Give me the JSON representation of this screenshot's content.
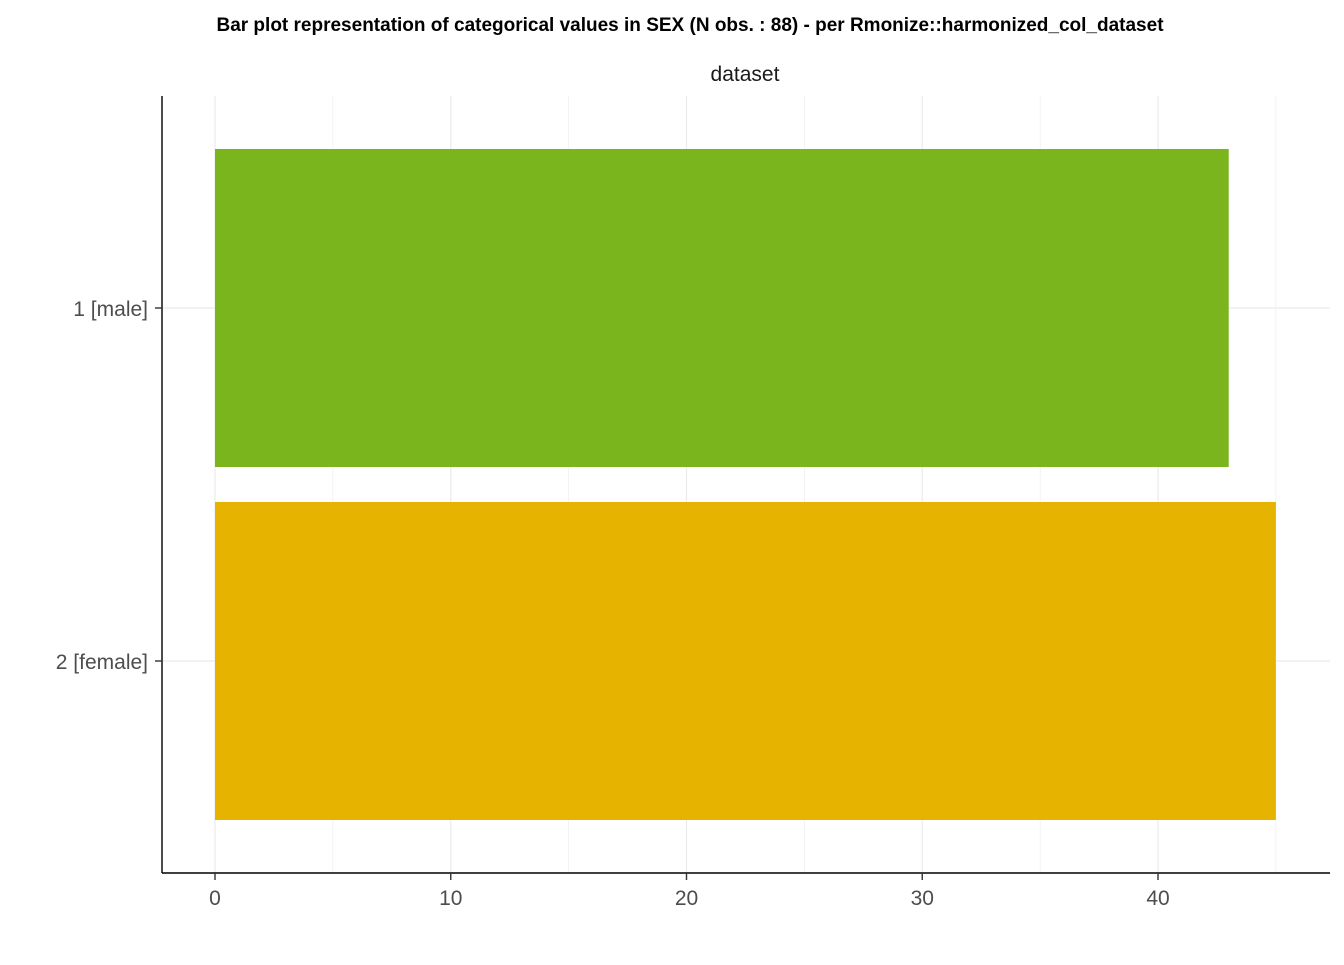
{
  "chart_data": {
    "type": "bar",
    "orientation": "horizontal",
    "title": "Bar plot representation of categorical values in SEX (N obs. : 88) - per Rmonize::harmonized_col_dataset",
    "facet_label": "dataset",
    "categories": [
      "1 [male]",
      "2 [female]"
    ],
    "values": [
      43,
      45
    ],
    "bar_colors": [
      "#7AB51D",
      "#E6B400"
    ],
    "xlim": [
      0,
      47
    ],
    "x_ticks": [
      0,
      10,
      20,
      30,
      40
    ],
    "x_minor_ticks": [
      5,
      15,
      25,
      35,
      45
    ],
    "xlabel": "",
    "ylabel": "",
    "grid": true,
    "legend": "none"
  }
}
